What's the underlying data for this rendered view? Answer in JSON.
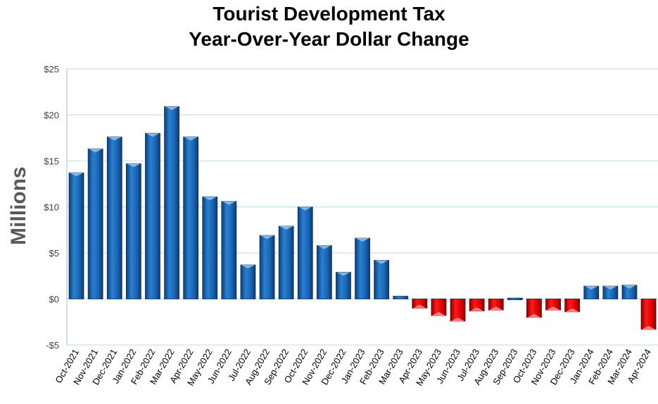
{
  "chart_data": {
    "type": "bar",
    "title": [
      "Tourist Development Tax",
      "Year-Over-Year Dollar Change"
    ],
    "ylabel": "Millions",
    "xlabel": "",
    "ylim": [
      -5,
      25
    ],
    "yticks": [
      25,
      20,
      15,
      10,
      5,
      0,
      -5
    ],
    "ytick_labels": [
      "$25",
      "$20",
      "$15",
      "$10",
      "$5",
      "$0",
      "-$5"
    ],
    "grid": true,
    "colors": {
      "positive": "#1f6fbf",
      "negative": "#e00000",
      "grid": "#c5d9ea",
      "axis": "#9dbcd8"
    },
    "categories": [
      "Oct-2021",
      "Nov-2021",
      "Dec-2021",
      "Jan-2022",
      "Feb-2022",
      "Mar-2022",
      "Apr-2022",
      "May-2022",
      "Jun-2022",
      "Jul-2022",
      "Aug-2022",
      "Sep-2022",
      "Oct-2022",
      "Nov-2022",
      "Dec-2022",
      "Jan-2023",
      "Feb-2023",
      "Mar-2023",
      "Apr-2023",
      "May-2023",
      "Jun-2023",
      "Jul-2023",
      "Aug-2023",
      "Sep-2023",
      "Oct-2023",
      "Nov-2023",
      "Dec-2023",
      "Jan-2024",
      "Feb-2024",
      "Mar-2024",
      "Apr-2024"
    ],
    "values": [
      13.7,
      16.3,
      17.6,
      14.7,
      18.0,
      20.9,
      17.6,
      11.1,
      10.6,
      3.7,
      6.9,
      7.9,
      10.0,
      5.8,
      2.9,
      6.6,
      4.2,
      0.3,
      -1.0,
      -1.8,
      -2.4,
      -1.3,
      -1.2,
      0.1,
      -2.0,
      -1.2,
      -1.4,
      1.4,
      1.4,
      1.5,
      -3.3
    ]
  }
}
